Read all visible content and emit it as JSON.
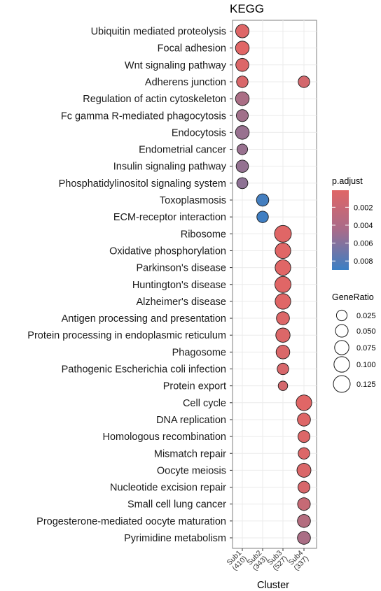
{
  "chart_data": {
    "type": "scatter",
    "title": "KEGG",
    "xlabel": "Cluster",
    "ylabel": "",
    "clusters": [
      {
        "label": "Sub1",
        "count": "(410)"
      },
      {
        "label": "Sub2",
        "count": "(343)"
      },
      {
        "label": "Sub3",
        "count": "(527)"
      },
      {
        "label": "Sub4",
        "count": "(337)"
      }
    ],
    "pathways": [
      "Ubiquitin mediated proteolysis",
      "Focal adhesion",
      "Wnt signaling pathway",
      "Adherens junction",
      "Regulation of actin cytoskeleton",
      "Fc gamma R-mediated phagocytosis",
      "Endocytosis",
      "Endometrial cancer",
      "Insulin signaling pathway",
      "Phosphatidylinositol signaling system",
      "Toxoplasmosis",
      "ECM-receptor interaction",
      "Ribosome",
      "Oxidative phosphorylation",
      "Parkinson's disease",
      "Huntington's disease",
      "Alzheimer's disease",
      "Antigen processing and presentation",
      "Protein processing in endoplasmic reticulum",
      "Phagosome",
      "Pathogenic Escherichia coli infection",
      "Protein export",
      "Cell cycle",
      "DNA replication",
      "Homologous recombination",
      "Mismatch repair",
      "Oocyte meiosis",
      "Nucleotide excision repair",
      "Small cell lung cancer",
      "Progesterone-mediated oocyte maturation",
      "Pyrimidine metabolism"
    ],
    "points": [
      {
        "pathway": "Ubiquitin mediated proteolysis",
        "cluster": "Sub1",
        "gene_ratio": 0.06,
        "p_adjust": 0.0002
      },
      {
        "pathway": "Focal adhesion",
        "cluster": "Sub1",
        "gene_ratio": 0.065,
        "p_adjust": 0.0001
      },
      {
        "pathway": "Wnt signaling pathway",
        "cluster": "Sub1",
        "gene_ratio": 0.055,
        "p_adjust": 0.0003
      },
      {
        "pathway": "Adherens junction",
        "cluster": "Sub1",
        "gene_ratio": 0.035,
        "p_adjust": 0.0005
      },
      {
        "pathway": "Adherens junction",
        "cluster": "Sub4",
        "gene_ratio": 0.035,
        "p_adjust": 0.0008
      },
      {
        "pathway": "Regulation of actin cytoskeleton",
        "cluster": "Sub1",
        "gene_ratio": 0.065,
        "p_adjust": 0.003
      },
      {
        "pathway": "Fc gamma R-mediated phagocytosis",
        "cluster": "Sub1",
        "gene_ratio": 0.04,
        "p_adjust": 0.0035
      },
      {
        "pathway": "Endocytosis",
        "cluster": "Sub1",
        "gene_ratio": 0.065,
        "p_adjust": 0.004
      },
      {
        "pathway": "Endometrial cancer",
        "cluster": "Sub1",
        "gene_ratio": 0.025,
        "p_adjust": 0.004
      },
      {
        "pathway": "Insulin signaling pathway",
        "cluster": "Sub1",
        "gene_ratio": 0.045,
        "p_adjust": 0.0042
      },
      {
        "pathway": "Phosphatidylinositol signaling system",
        "cluster": "Sub1",
        "gene_ratio": 0.03,
        "p_adjust": 0.0045
      },
      {
        "pathway": "Toxoplasmosis",
        "cluster": "Sub2",
        "gene_ratio": 0.045,
        "p_adjust": 0.0085
      },
      {
        "pathway": "ECM-receptor interaction",
        "cluster": "Sub2",
        "gene_ratio": 0.035,
        "p_adjust": 0.0088
      },
      {
        "pathway": "Ribosome",
        "cluster": "Sub3",
        "gene_ratio": 0.125,
        "p_adjust": 0.0001
      },
      {
        "pathway": "Oxidative phosphorylation",
        "cluster": "Sub3",
        "gene_ratio": 0.1,
        "p_adjust": 0.0001
      },
      {
        "pathway": "Parkinson's disease",
        "cluster": "Sub3",
        "gene_ratio": 0.1,
        "p_adjust": 0.0001
      },
      {
        "pathway": "Huntington's disease",
        "cluster": "Sub3",
        "gene_ratio": 0.11,
        "p_adjust": 0.0001
      },
      {
        "pathway": "Alzheimer's disease",
        "cluster": "Sub3",
        "gene_ratio": 0.1,
        "p_adjust": 0.0001
      },
      {
        "pathway": "Antigen processing and presentation",
        "cluster": "Sub3",
        "gene_ratio": 0.055,
        "p_adjust": 0.0003
      },
      {
        "pathway": "Protein processing in endoplasmic reticulum",
        "cluster": "Sub3",
        "gene_ratio": 0.075,
        "p_adjust": 0.0003
      },
      {
        "pathway": "Phagosome",
        "cluster": "Sub3",
        "gene_ratio": 0.065,
        "p_adjust": 0.0004
      },
      {
        "pathway": "Pathogenic Escherichia coli infection",
        "cluster": "Sub3",
        "gene_ratio": 0.035,
        "p_adjust": 0.0006
      },
      {
        "pathway": "Protein export",
        "cluster": "Sub3",
        "gene_ratio": 0.015,
        "p_adjust": 0.0008
      },
      {
        "pathway": "Cell cycle",
        "cluster": "Sub4",
        "gene_ratio": 0.1,
        "p_adjust": 0.0001
      },
      {
        "pathway": "DNA replication",
        "cluster": "Sub4",
        "gene_ratio": 0.055,
        "p_adjust": 0.0002
      },
      {
        "pathway": "Homologous recombination",
        "cluster": "Sub4",
        "gene_ratio": 0.04,
        "p_adjust": 0.0003
      },
      {
        "pathway": "Mismatch repair",
        "cluster": "Sub4",
        "gene_ratio": 0.035,
        "p_adjust": 0.0003
      },
      {
        "pathway": "Oocyte meiosis",
        "cluster": "Sub4",
        "gene_ratio": 0.07,
        "p_adjust": 0.0004
      },
      {
        "pathway": "Nucleotide excision repair",
        "cluster": "Sub4",
        "gene_ratio": 0.04,
        "p_adjust": 0.0006
      },
      {
        "pathway": "Small cell lung cancer",
        "cluster": "Sub4",
        "gene_ratio": 0.05,
        "p_adjust": 0.0015
      },
      {
        "pathway": "Progesterone-mediated oocyte maturation",
        "cluster": "Sub4",
        "gene_ratio": 0.055,
        "p_adjust": 0.0025
      },
      {
        "pathway": "Pyrimidine metabolism",
        "cluster": "Sub4",
        "gene_ratio": 0.055,
        "p_adjust": 0.003
      }
    ],
    "color_legend": {
      "title": "p.adjust",
      "ticks": [
        0.002,
        0.004,
        0.006,
        0.008
      ],
      "tick_labels": [
        "0.002",
        "0.004",
        "0.006",
        "0.008"
      ],
      "range": [
        0.0001,
        0.009
      ],
      "low_color": "#e06666",
      "high_color": "#3b7fc4"
    },
    "size_legend": {
      "title": "GeneRatio",
      "values": [
        0.025,
        0.05,
        0.075,
        0.1,
        0.125
      ],
      "labels": [
        "0.025",
        "0.050",
        "0.075",
        "0.100",
        "0.125"
      ]
    },
    "grid": true,
    "legend_position": "right"
  }
}
